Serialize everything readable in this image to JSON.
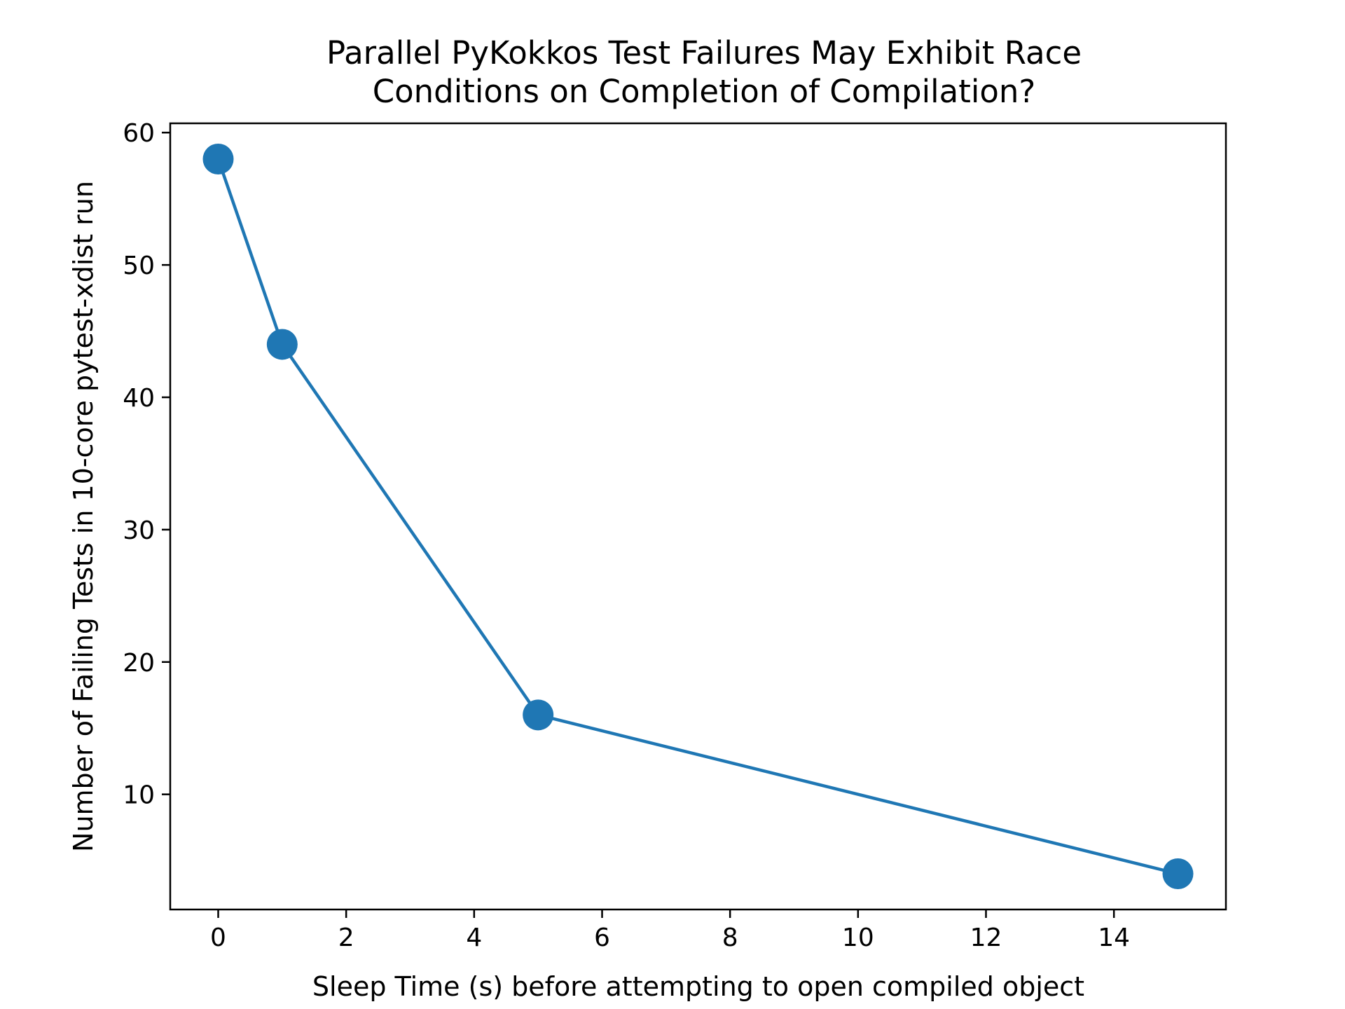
{
  "chart_data": {
    "type": "line",
    "title": [
      "Parallel PyKokkos Test Failures May Exhibit Race",
      "Conditions on Completion of Compilation?"
    ],
    "xlabel": "Sleep Time (s) before attempting to open compiled object",
    "ylabel": "Number of Failing Tests in 10-core pytest-xdist run",
    "x": [
      0,
      1,
      5,
      15
    ],
    "y": [
      58,
      44,
      16,
      4
    ],
    "xlim": [
      -0.75,
      15.75
    ],
    "ylim": [
      1.3,
      60.7
    ],
    "xticks": [
      0,
      2,
      4,
      6,
      8,
      10,
      12,
      14
    ],
    "yticks": [
      10,
      20,
      30,
      40,
      50,
      60
    ],
    "grid": false,
    "legend": "none",
    "series_color": "#1f77b4",
    "marker": "circle"
  }
}
